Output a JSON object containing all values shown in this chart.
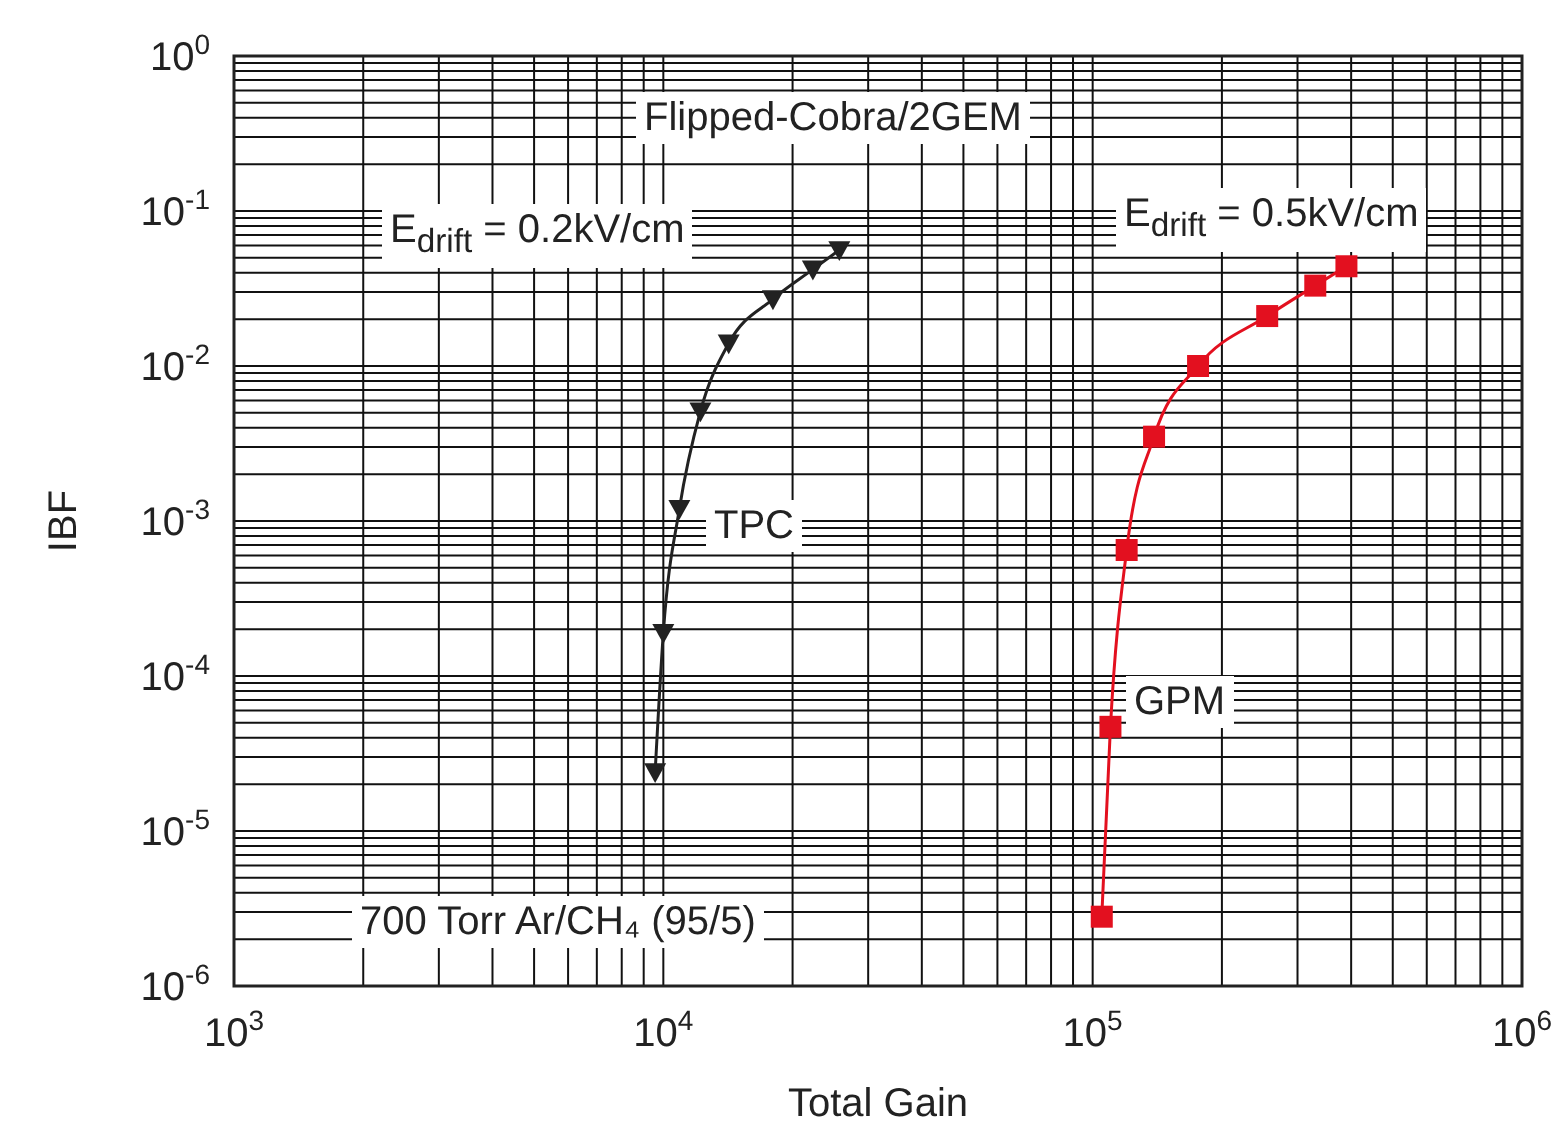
{
  "chart_data": {
    "type": "line",
    "log": "xy",
    "grid": true,
    "legend": false,
    "line_style": "solid",
    "xlabel": "Total Gain",
    "ylabel": "IBF",
    "xlim": [
      1000,
      1000000
    ],
    "ylim": [
      1e-06,
      1
    ],
    "xticks": [
      {
        "value": 1000,
        "label": "10$^{3}$"
      },
      {
        "value": 2000,
        "label": null
      },
      {
        "value": 3000,
        "label": null
      },
      {
        "value": 4000,
        "label": null
      },
      {
        "value": 5000,
        "label": null
      },
      {
        "value": 6000,
        "label": null
      },
      {
        "value": 7000,
        "label": null
      },
      {
        "value": 8000,
        "label": null
      },
      {
        "value": 9000,
        "label": null
      },
      {
        "value": 10000,
        "label": "10$^{4}$"
      },
      {
        "value": 20000,
        "label": null
      },
      {
        "value": 30000,
        "label": null
      },
      {
        "value": 40000,
        "label": null
      },
      {
        "value": 50000,
        "label": null
      },
      {
        "value": 60000,
        "label": null
      },
      {
        "value": 70000,
        "label": null
      },
      {
        "value": 80000,
        "label": null
      },
      {
        "value": 90000,
        "label": null
      },
      {
        "value": 100000,
        "label": "10$^{5}$"
      },
      {
        "value": 200000,
        "label": null
      },
      {
        "value": 300000,
        "label": null
      },
      {
        "value": 400000,
        "label": null
      },
      {
        "value": 500000,
        "label": null
      },
      {
        "value": 600000,
        "label": null
      },
      {
        "value": 700000,
        "label": null
      },
      {
        "value": 800000,
        "label": null
      },
      {
        "value": 900000,
        "label": null
      },
      {
        "value": 1000000,
        "label": "10$^{6}$"
      }
    ],
    "yticks": [
      {
        "value": 1e-06,
        "label": "10$^{-6}$"
      },
      {
        "value": 2e-06,
        "label": null
      },
      {
        "value": 3e-06,
        "label": null
      },
      {
        "value": 4e-06,
        "label": null
      },
      {
        "value": 5e-06,
        "label": null
      },
      {
        "value": 6e-06,
        "label": null
      },
      {
        "value": 7e-06,
        "label": null
      },
      {
        "value": 8e-06,
        "label": null
      },
      {
        "value": 9e-06,
        "label": null
      },
      {
        "value": 1e-05,
        "label": "10$^{-5}$"
      },
      {
        "value": 2e-05,
        "label": null
      },
      {
        "value": 3e-05,
        "label": null
      },
      {
        "value": 4e-05,
        "label": null
      },
      {
        "value": 5e-05,
        "label": null
      },
      {
        "value": 6e-05,
        "label": null
      },
      {
        "value": 7e-05,
        "label": null
      },
      {
        "value": 8e-05,
        "label": null
      },
      {
        "value": 9e-05,
        "label": null
      },
      {
        "value": 0.0001,
        "label": "10$^{-4}$"
      },
      {
        "value": 0.0002,
        "label": null
      },
      {
        "value": 0.0003,
        "label": null
      },
      {
        "value": 0.0004,
        "label": null
      },
      {
        "value": 0.0005,
        "label": null
      },
      {
        "value": 0.0006,
        "label": null
      },
      {
        "value": 0.0007,
        "label": null
      },
      {
        "value": 0.0008,
        "label": null
      },
      {
        "value": 0.0009,
        "label": null
      },
      {
        "value": 0.001,
        "label": "10$^{-3}$"
      },
      {
        "value": 0.002,
        "label": null
      },
      {
        "value": 0.003,
        "label": null
      },
      {
        "value": 0.004,
        "label": null
      },
      {
        "value": 0.005,
        "label": null
      },
      {
        "value": 0.006,
        "label": null
      },
      {
        "value": 0.007,
        "label": null
      },
      {
        "value": 0.008,
        "label": null
      },
      {
        "value": 0.009,
        "label": null
      },
      {
        "value": 0.01,
        "label": "10$^{-2}$"
      },
      {
        "value": 0.02,
        "label": null
      },
      {
        "value": 0.03,
        "label": null
      },
      {
        "value": 0.04,
        "label": null
      },
      {
        "value": 0.05,
        "label": null
      },
      {
        "value": 0.06,
        "label": null
      },
      {
        "value": 0.07,
        "label": null
      },
      {
        "value": 0.08,
        "label": null
      },
      {
        "value": 0.09,
        "label": null
      },
      {
        "value": 0.1,
        "label": "10$^{-1}$"
      },
      {
        "value": 0.2,
        "label": null
      },
      {
        "value": 0.3,
        "label": null
      },
      {
        "value": 0.4,
        "label": null
      },
      {
        "value": 0.5,
        "label": null
      },
      {
        "value": 0.6,
        "label": null
      },
      {
        "value": 0.7,
        "label": null
      },
      {
        "value": 0.8,
        "label": null
      },
      {
        "value": 0.9,
        "label": null
      },
      {
        "value": 1,
        "label": "10$^{0}$"
      }
    ],
    "series": [
      {
        "name": "TPC",
        "color": "#222222",
        "marker": "triangle",
        "x": [
          9570,
          10000,
          10900,
          12200,
          14200,
          18000,
          22300,
          25700
        ],
        "values": [
          2.4e-05,
          0.00019,
          0.0012,
          0.0051,
          0.014,
          0.027,
          0.042,
          0.056
        ]
      },
      {
        "name": "GPM",
        "color": "#e3101f",
        "marker": "square",
        "x": [
          105000,
          110000,
          120000,
          139000,
          176000,
          255000,
          330000,
          390000
        ],
        "values": [
          2.8e-06,
          4.7e-05,
          0.00065,
          0.0035,
          0.01,
          0.021,
          0.033,
          0.044
        ]
      }
    ],
    "annotations": [
      "Flipped-Cobra/2GEM",
      "E$_{drift}$ = 0.2kV/cm",
      "E$_{drift}$ = 0.5kV/cm",
      "700 Torr Ar/CH₄ (95/5)"
    ]
  }
}
